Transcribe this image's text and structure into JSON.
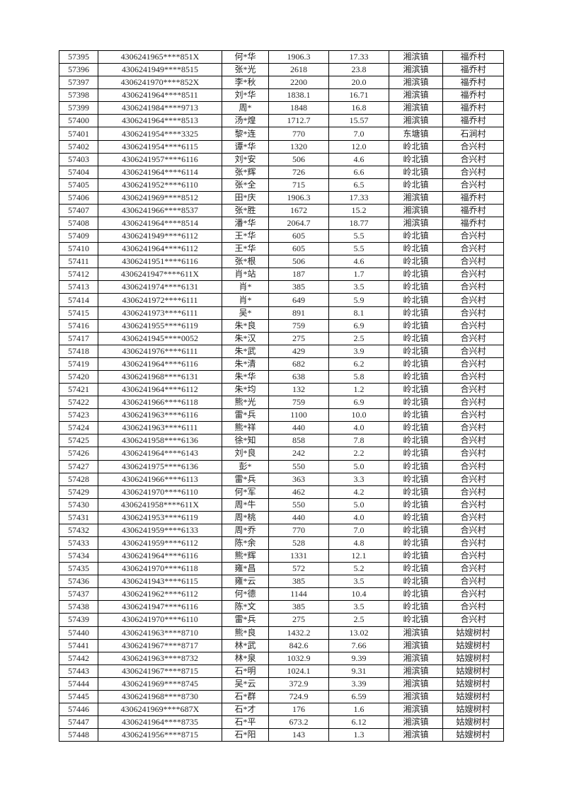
{
  "rows": [
    [
      "57395",
      "4306241965****851X",
      "何*华",
      "1906.3",
      "17.33",
      "湘滨镇",
      "福乔村"
    ],
    [
      "57396",
      "4306241949****8515",
      "张*光",
      "2618",
      "23.8",
      "湘滨镇",
      "福乔村"
    ],
    [
      "57397",
      "4306241970****852X",
      "李*秋",
      "2200",
      "20.0",
      "湘滨镇",
      "福乔村"
    ],
    [
      "57398",
      "4306241964****8511",
      "刘*华",
      "1838.1",
      "16.71",
      "湘滨镇",
      "福乔村"
    ],
    [
      "57399",
      "4306241984****9713",
      "周*",
      "1848",
      "16.8",
      "湘滨镇",
      "福乔村"
    ],
    [
      "57400",
      "4306241964****8513",
      "汤*煌",
      "1712.7",
      "15.57",
      "湘滨镇",
      "福乔村"
    ],
    [
      "57401",
      "4306241954****3325",
      "黎*连",
      "770",
      "7.0",
      "东塘镇",
      "石涧村"
    ],
    [
      "57402",
      "4306241954****6115",
      "谭*华",
      "1320",
      "12.0",
      "岭北镇",
      "合兴村"
    ],
    [
      "57403",
      "4306241957****6116",
      "刘*安",
      "506",
      "4.6",
      "岭北镇",
      "合兴村"
    ],
    [
      "57404",
      "4306241964****6114",
      "张*辉",
      "726",
      "6.6",
      "岭北镇",
      "合兴村"
    ],
    [
      "57405",
      "4306241952****6110",
      "张*全",
      "715",
      "6.5",
      "岭北镇",
      "合兴村"
    ],
    [
      "57406",
      "4306241969****8512",
      "田*庆",
      "1906.3",
      "17.33",
      "湘滨镇",
      "福乔村"
    ],
    [
      "57407",
      "4306241966****8537",
      "张*胜",
      "1672",
      "15.2",
      "湘滨镇",
      "福乔村"
    ],
    [
      "57408",
      "4306241964****8514",
      "潘*华",
      "2064.7",
      "18.77",
      "湘滨镇",
      "福乔村"
    ],
    [
      "57409",
      "4306241949****6112",
      "王*华",
      "605",
      "5.5",
      "岭北镇",
      "合兴村"
    ],
    [
      "57410",
      "4306241964****6112",
      "王*华",
      "605",
      "5.5",
      "岭北镇",
      "合兴村"
    ],
    [
      "57411",
      "4306241951****6116",
      "张*根",
      "506",
      "4.6",
      "岭北镇",
      "合兴村"
    ],
    [
      "57412",
      "4306241947****611X",
      "肖*站",
      "187",
      "1.7",
      "岭北镇",
      "合兴村"
    ],
    [
      "57413",
      "4306241974****6131",
      "肖*",
      "385",
      "3.5",
      "岭北镇",
      "合兴村"
    ],
    [
      "57414",
      "4306241972****6111",
      "肖*",
      "649",
      "5.9",
      "岭北镇",
      "合兴村"
    ],
    [
      "57415",
      "4306241973****6111",
      "吴*",
      "891",
      "8.1",
      "岭北镇",
      "合兴村"
    ],
    [
      "57416",
      "4306241955****6119",
      "朱*良",
      "759",
      "6.9",
      "岭北镇",
      "合兴村"
    ],
    [
      "57417",
      "4306241945****0052",
      "朱*汉",
      "275",
      "2.5",
      "岭北镇",
      "合兴村"
    ],
    [
      "57418",
      "4306241976****6111",
      "朱*武",
      "429",
      "3.9",
      "岭北镇",
      "合兴村"
    ],
    [
      "57419",
      "4306241964****6116",
      "朱*清",
      "682",
      "6.2",
      "岭北镇",
      "合兴村"
    ],
    [
      "57420",
      "4306241968****6131",
      "朱*华",
      "638",
      "5.8",
      "岭北镇",
      "合兴村"
    ],
    [
      "57421",
      "4306241964****6112",
      "朱*均",
      "132",
      "1.2",
      "岭北镇",
      "合兴村"
    ],
    [
      "57422",
      "4306241966****6118",
      "熊*光",
      "759",
      "6.9",
      "岭北镇",
      "合兴村"
    ],
    [
      "57423",
      "4306241963****6116",
      "雷*兵",
      "1100",
      "10.0",
      "岭北镇",
      "合兴村"
    ],
    [
      "57424",
      "4306241963****6111",
      "熊*祥",
      "440",
      "4.0",
      "岭北镇",
      "合兴村"
    ],
    [
      "57425",
      "4306241958****6136",
      "徐*知",
      "858",
      "7.8",
      "岭北镇",
      "合兴村"
    ],
    [
      "57426",
      "4306241964****6143",
      "刘*良",
      "242",
      "2.2",
      "岭北镇",
      "合兴村"
    ],
    [
      "57427",
      "4306241975****6136",
      "彭*",
      "550",
      "5.0",
      "岭北镇",
      "合兴村"
    ],
    [
      "57428",
      "4306241966****6113",
      "雷*兵",
      "363",
      "3.3",
      "岭北镇",
      "合兴村"
    ],
    [
      "57429",
      "4306241970****6110",
      "何*军",
      "462",
      "4.2",
      "岭北镇",
      "合兴村"
    ],
    [
      "57430",
      "4306241958****611X",
      "周*牛",
      "550",
      "5.0",
      "岭北镇",
      "合兴村"
    ],
    [
      "57431",
      "4306241953****6119",
      "周*桃",
      "440",
      "4.0",
      "岭北镇",
      "合兴村"
    ],
    [
      "57432",
      "4306241959****6133",
      "周*乔",
      "770",
      "7.0",
      "岭北镇",
      "合兴村"
    ],
    [
      "57433",
      "4306241959****6112",
      "陈*余",
      "528",
      "4.8",
      "岭北镇",
      "合兴村"
    ],
    [
      "57434",
      "4306241964****6116",
      "熊*辉",
      "1331",
      "12.1",
      "岭北镇",
      "合兴村"
    ],
    [
      "57435",
      "4306241970****6118",
      "雍*昌",
      "572",
      "5.2",
      "岭北镇",
      "合兴村"
    ],
    [
      "57436",
      "4306241943****6115",
      "雍*云",
      "385",
      "3.5",
      "岭北镇",
      "合兴村"
    ],
    [
      "57437",
      "4306241962****6112",
      "何*德",
      "1144",
      "10.4",
      "岭北镇",
      "合兴村"
    ],
    [
      "57438",
      "4306241947****6116",
      "陈*文",
      "385",
      "3.5",
      "岭北镇",
      "合兴村"
    ],
    [
      "57439",
      "4306241970****6110",
      "雷*兵",
      "275",
      "2.5",
      "岭北镇",
      "合兴村"
    ],
    [
      "57440",
      "4306241963****8710",
      "熊*良",
      "1432.2",
      "13.02",
      "湘滨镇",
      "姑嫂树村"
    ],
    [
      "57441",
      "4306241967****8717",
      "林*武",
      "842.6",
      "7.66",
      "湘滨镇",
      "姑嫂树村"
    ],
    [
      "57442",
      "4306241963****8732",
      "林*泉",
      "1032.9",
      "9.39",
      "湘滨镇",
      "姑嫂树村"
    ],
    [
      "57443",
      "4306241967****8715",
      "石*明",
      "1024.1",
      "9.31",
      "湘滨镇",
      "姑嫂树村"
    ],
    [
      "57444",
      "4306241969****8745",
      "吴*云",
      "372.9",
      "3.39",
      "湘滨镇",
      "姑嫂树村"
    ],
    [
      "57445",
      "4306241968****8730",
      "石*群",
      "724.9",
      "6.59",
      "湘滨镇",
      "姑嫂树村"
    ],
    [
      "57446",
      "4306241969****687X",
      "石*才",
      "176",
      "1.6",
      "湘滨镇",
      "姑嫂树村"
    ],
    [
      "57447",
      "4306241964****8735",
      "石*平",
      "673.2",
      "6.12",
      "湘滨镇",
      "姑嫂树村"
    ],
    [
      "57448",
      "4306241956****8715",
      "石*阳",
      "143",
      "1.3",
      "湘滨镇",
      "姑嫂树村"
    ]
  ]
}
